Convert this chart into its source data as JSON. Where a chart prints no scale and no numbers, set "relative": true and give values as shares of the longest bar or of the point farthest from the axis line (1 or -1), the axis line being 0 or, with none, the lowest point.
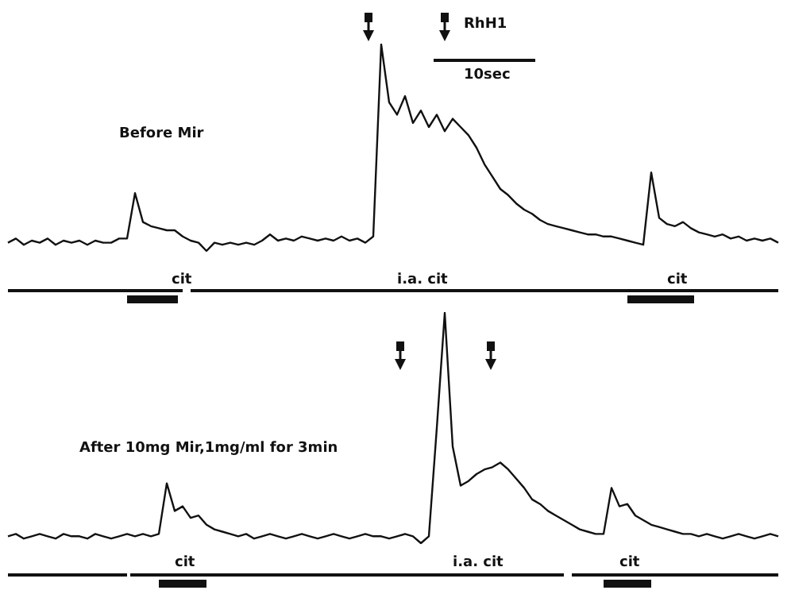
{
  "chart_data": [
    {
      "type": "line",
      "relative": true,
      "marker": "none",
      "color": "#111111",
      "categories": [
        null,
        null,
        null,
        null,
        null,
        null,
        null,
        null,
        null,
        null,
        null,
        null,
        null,
        null,
        null,
        null,
        null,
        null,
        null,
        null,
        null,
        null,
        null,
        null,
        null,
        null,
        null,
        null,
        null,
        null,
        null,
        null,
        null,
        null,
        null,
        null,
        null,
        null,
        null,
        null,
        null,
        null,
        null,
        null,
        null,
        null,
        null,
        null,
        null,
        null,
        null,
        null,
        null,
        null,
        null,
        null,
        null,
        null,
        null,
        null,
        null,
        null,
        null,
        null,
        null,
        null,
        null,
        null,
        null,
        null,
        null,
        null,
        null,
        null,
        null,
        null,
        null,
        null,
        null,
        null,
        null,
        null,
        null,
        null,
        null,
        null,
        null,
        null,
        null,
        null,
        null,
        null,
        null,
        null,
        null,
        null,
        null,
        null
      ],
      "values": [
        0.04,
        0.06,
        0.03,
        0.05,
        0.04,
        0.06,
        0.03,
        0.05,
        0.04,
        0.05,
        0.03,
        0.05,
        0.04,
        0.04,
        0.06,
        0.06,
        0.28,
        0.14,
        0.12,
        0.11,
        0.1,
        0.1,
        0.07,
        0.05,
        0.04,
        0,
        0.04,
        0.03,
        0.04,
        0.03,
        0.04,
        0.03,
        0.05,
        0.08,
        0.05,
        0.06,
        0.05,
        0.07,
        0.06,
        0.05,
        0.06,
        0.05,
        0.07,
        0.05,
        0.06,
        0.04,
        0.07,
        1,
        0.72,
        0.66,
        0.75,
        0.62,
        0.68,
        0.6,
        0.66,
        0.58,
        0.64,
        0.6,
        0.56,
        0.5,
        0.42,
        0.36,
        0.3,
        0.27,
        0.23,
        0.2,
        0.18,
        0.15,
        0.13,
        0.12,
        0.11,
        0.1,
        0.09,
        0.08,
        0.08,
        0.07,
        0.07,
        0.06,
        0.05,
        0.04,
        0.03,
        0.38,
        0.16,
        0.13,
        0.12,
        0.14,
        0.11,
        0.09,
        0.08,
        0.07,
        0.08,
        0.06,
        0.07,
        0.05,
        0.06,
        0.05,
        0.06,
        0.04
      ],
      "annotations": [
        "Before Mir",
        "cit",
        "i.a. cit",
        "cit",
        "RhH1",
        "10sec"
      ]
    },
    {
      "type": "line",
      "relative": true,
      "marker": "none",
      "color": "#111111",
      "categories": [
        null,
        null,
        null,
        null,
        null,
        null,
        null,
        null,
        null,
        null,
        null,
        null,
        null,
        null,
        null,
        null,
        null,
        null,
        null,
        null,
        null,
        null,
        null,
        null,
        null,
        null,
        null,
        null,
        null,
        null,
        null,
        null,
        null,
        null,
        null,
        null,
        null,
        null,
        null,
        null,
        null,
        null,
        null,
        null,
        null,
        null,
        null,
        null,
        null,
        null,
        null,
        null,
        null,
        null,
        null,
        null,
        null,
        null,
        null,
        null,
        null,
        null,
        null,
        null,
        null,
        null,
        null,
        null,
        null,
        null,
        null,
        null,
        null,
        null,
        null,
        null,
        null,
        null,
        null,
        null,
        null,
        null,
        null,
        null,
        null,
        null,
        null,
        null,
        null,
        null,
        null,
        null,
        null,
        null,
        null,
        null,
        null,
        null
      ],
      "values": [
        0.03,
        0.04,
        0.02,
        0.03,
        0.04,
        0.03,
        0.02,
        0.04,
        0.03,
        0.03,
        0.02,
        0.04,
        0.03,
        0.02,
        0.03,
        0.04,
        0.03,
        0.04,
        0.03,
        0.04,
        0.26,
        0.14,
        0.16,
        0.11,
        0.12,
        0.08,
        0.06,
        0.05,
        0.04,
        0.03,
        0.04,
        0.02,
        0.03,
        0.04,
        0.03,
        0.02,
        0.03,
        0.04,
        0.03,
        0.02,
        0.03,
        0.04,
        0.03,
        0.02,
        0.03,
        0.04,
        0.03,
        0.03,
        0.02,
        0.03,
        0.04,
        0.03,
        0,
        0.03,
        0.5,
        1,
        0.42,
        0.25,
        0.27,
        0.3,
        0.32,
        0.33,
        0.35,
        0.32,
        0.28,
        0.24,
        0.19,
        0.17,
        0.14,
        0.12,
        0.1,
        0.08,
        0.06,
        0.05,
        0.04,
        0.04,
        0.24,
        0.16,
        0.17,
        0.12,
        0.1,
        0.08,
        0.07,
        0.06,
        0.05,
        0.04,
        0.04,
        0.03,
        0.04,
        0.03,
        0.02,
        0.03,
        0.04,
        0.03,
        0.02,
        0.03,
        0.04,
        0.03
      ],
      "annotations": [
        "After 10mg Mir,1mg/ml for 3min",
        "cit",
        "i.a. cit",
        "cit"
      ]
    }
  ]
}
